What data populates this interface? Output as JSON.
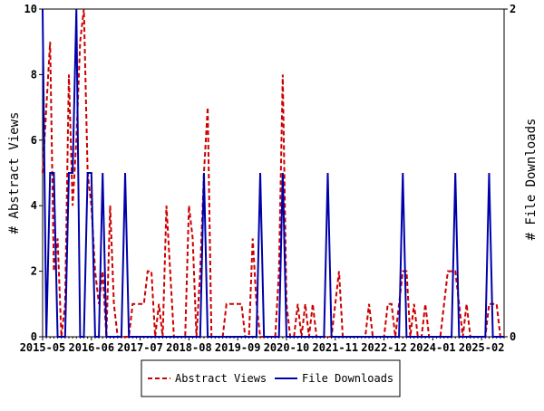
{
  "chart_data": {
    "type": "line",
    "y_label": "# Abstract Views",
    "y2_label": "# File Downloads",
    "categories": [
      "2015-05",
      null,
      null,
      null,
      null,
      null,
      null,
      null,
      null,
      null,
      null,
      null,
      null,
      "2016-06",
      null,
      null,
      null,
      null,
      null,
      null,
      null,
      null,
      null,
      null,
      null,
      null,
      "2017-07",
      null,
      null,
      null,
      null,
      null,
      null,
      null,
      null,
      null,
      null,
      null,
      null,
      "2018-08",
      null,
      null,
      null,
      null,
      null,
      null,
      null,
      null,
      null,
      null,
      null,
      null,
      "2019-09",
      null,
      null,
      null,
      null,
      null,
      null,
      null,
      null,
      null,
      null,
      null,
      null,
      "2020-10",
      null,
      null,
      null,
      null,
      null,
      null,
      null,
      null,
      null,
      null,
      null,
      null,
      "2021-11",
      null,
      null,
      null,
      null,
      null,
      null,
      null,
      null,
      null,
      null,
      null,
      null,
      "2022-12",
      null,
      null,
      null,
      null,
      null,
      null,
      null,
      null,
      null,
      null,
      null,
      null,
      "2024-01",
      null,
      null,
      null,
      null,
      null,
      null,
      null,
      null,
      null,
      null,
      null,
      null,
      "2025-02",
      null,
      null,
      null,
      null,
      null,
      null
    ],
    "series": [
      {
        "name": "Abstract Views",
        "color": "#cc0000",
        "axis": "y",
        "values": [
          5,
          7,
          9,
          2,
          3,
          0,
          1,
          8,
          4,
          6,
          9,
          10,
          5,
          4,
          2,
          1,
          2,
          0,
          4,
          1,
          0,
          0,
          0,
          0,
          1,
          1,
          1,
          1,
          2,
          2,
          0,
          1,
          0,
          4,
          2,
          0,
          0,
          0,
          0,
          4,
          3,
          0,
          2,
          5,
          7,
          0,
          0,
          0,
          0,
          1,
          1,
          1,
          1,
          1,
          0,
          0,
          3,
          1,
          0,
          0,
          0,
          0,
          0,
          2,
          8,
          1,
          0,
          0,
          1,
          0,
          1,
          0,
          1,
          0,
          0,
          0,
          0,
          0,
          1,
          2,
          0,
          0,
          0,
          0,
          0,
          0,
          0,
          1,
          0,
          0,
          0,
          0,
          1,
          1,
          0,
          1,
          2,
          2,
          0,
          1,
          0,
          0,
          1,
          0,
          0,
          0,
          0,
          1,
          2,
          2,
          2,
          1,
          0,
          1,
          0,
          0,
          0,
          0,
          0,
          1,
          1,
          1,
          0,
          0
        ]
      },
      {
        "name": "File Downloads",
        "color": "#0000aa",
        "axis": "y2",
        "values": [
          2,
          0,
          1,
          1,
          0,
          0,
          0,
          1,
          1,
          2,
          0,
          0,
          1,
          1,
          0,
          0,
          1,
          0,
          0,
          0,
          0,
          0,
          1,
          0,
          0,
          0,
          0,
          0,
          0,
          0,
          0,
          0,
          0,
          0,
          0,
          0,
          0,
          0,
          0,
          0,
          0,
          0,
          0,
          1,
          0,
          0,
          0,
          0,
          0,
          0,
          0,
          0,
          0,
          0,
          0,
          0,
          0,
          0,
          1,
          0,
          0,
          0,
          0,
          0,
          1,
          0,
          0,
          0,
          0,
          0,
          0,
          0,
          0,
          0,
          0,
          0,
          1,
          0,
          0,
          0,
          0,
          0,
          0,
          0,
          0,
          0,
          0,
          0,
          0,
          0,
          0,
          0,
          0,
          0,
          0,
          0,
          1,
          0,
          0,
          0,
          0,
          0,
          0,
          0,
          0,
          0,
          0,
          0,
          0,
          0,
          1,
          0,
          0,
          0,
          0,
          0,
          0,
          0,
          0,
          1,
          0,
          0,
          0,
          0
        ]
      }
    ],
    "ylim": [
      0,
      10
    ],
    "yticks": [
      0,
      2,
      4,
      6,
      8,
      10
    ],
    "y2lim": [
      0,
      2
    ],
    "y2ticks": [
      0,
      2
    ],
    "legend": "bottom"
  }
}
